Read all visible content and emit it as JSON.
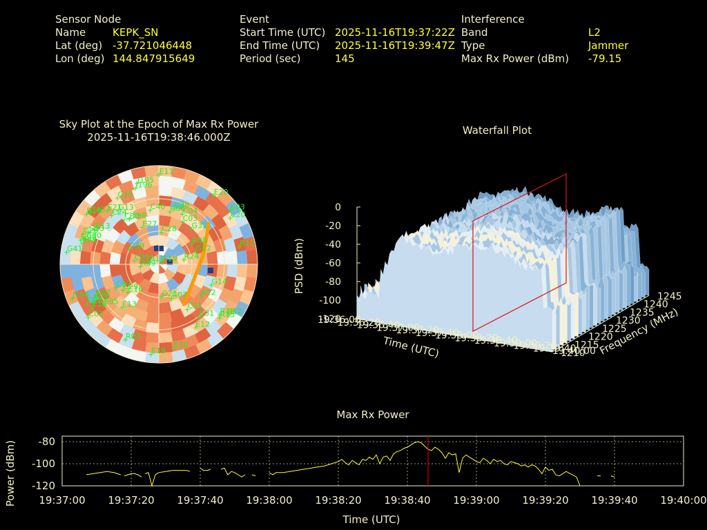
{
  "header": {
    "sensor": {
      "title": "Sensor Node",
      "name_label": "Name",
      "name": "KEPK_SN",
      "lat_label": "Lat (deg)",
      "lat": "-37.721046448",
      "lon_label": "Lon (deg)",
      "lon": "144.847915649"
    },
    "event": {
      "title": "Event",
      "start_label": "Start Time (UTC)",
      "start": "2025-11-16T19:37:22Z",
      "end_label": "End Time (UTC)",
      "end": "2025-11-16T19:39:47Z",
      "period_label": "Period (sec)",
      "period": "145"
    },
    "interference": {
      "title": "Interference",
      "band_label": "Band",
      "band": "L2",
      "type_label": "Type",
      "type": "Jammer",
      "power_label": "Max Rx Power (dBm)",
      "power": "-79.15"
    }
  },
  "colors": {
    "text": "#f3f0c8",
    "value": "#ffff33",
    "satellite": "#22ee22",
    "track": "#ff9900",
    "marker": "#cc0000"
  },
  "chart_data": [
    {
      "type": "scatter",
      "title": "Sky Plot at the Epoch of Max Rx Power",
      "subtitle": "2025-11-16T19:38:46.000Z",
      "projection": "polar (azimuth / elevation)",
      "satellites": [
        {
          "id": "E11",
          "az": 2,
          "el": 8
        },
        {
          "id": "J196",
          "az": 345,
          "el": 18
        },
        {
          "id": "J195",
          "az": 347,
          "el": 14
        },
        {
          "id": "E20",
          "az": 40,
          "el": 8
        },
        {
          "id": "G15",
          "az": 330,
          "el": 20
        },
        {
          "id": "E21",
          "az": 318,
          "el": 24
        },
        {
          "id": "G13",
          "az": 325,
          "el": 30
        },
        {
          "id": "E03",
          "az": 54,
          "el": 6
        },
        {
          "id": "C20",
          "az": 58,
          "el": 10
        },
        {
          "id": "C04",
          "az": 28,
          "el": 38
        },
        {
          "id": "C08",
          "az": 15,
          "el": 40
        },
        {
          "id": "C40",
          "az": 354,
          "el": 40
        },
        {
          "id": "J198",
          "az": 330,
          "el": 42
        },
        {
          "id": "C38",
          "az": 18,
          "el": 36
        },
        {
          "id": "C03",
          "az": 32,
          "el": 44
        },
        {
          "id": "R10",
          "az": 306,
          "el": 12
        },
        {
          "id": "C43",
          "az": 308,
          "el": 14
        },
        {
          "id": "C24",
          "az": 318,
          "el": 30
        },
        {
          "id": "C30",
          "az": 325,
          "el": 40
        },
        {
          "id": "E27",
          "az": 340,
          "el": 54
        },
        {
          "id": "C28",
          "az": 10,
          "el": 60
        },
        {
          "id": "G23",
          "az": 296,
          "el": 22
        },
        {
          "id": "C26",
          "az": 293,
          "el": 18
        },
        {
          "id": "R13",
          "az": 300,
          "el": 26
        },
        {
          "id": "G08",
          "az": 288,
          "el": 18
        },
        {
          "id": "G30",
          "az": 290,
          "el": 22
        },
        {
          "id": "E08",
          "az": 286,
          "el": 20
        },
        {
          "id": "G41",
          "az": 278,
          "el": 8
        },
        {
          "id": "G32",
          "az": 45,
          "el": 44
        },
        {
          "id": "R11",
          "az": 78,
          "el": 12
        },
        {
          "id": "R08",
          "az": 60,
          "el": 52
        },
        {
          "id": "R24",
          "az": 80,
          "el": 64
        },
        {
          "id": "G22",
          "az": 72,
          "el": 52
        },
        {
          "id": "C39",
          "az": 300,
          "el": 62
        },
        {
          "id": "C09",
          "az": 280,
          "el": 70
        },
        {
          "id": "R12",
          "az": 290,
          "el": 84
        },
        {
          "id": "C19",
          "az": 70,
          "el": 84
        },
        {
          "id": "G14",
          "az": 110,
          "el": 36
        },
        {
          "id": "C01",
          "az": 145,
          "el": 40
        },
        {
          "id": "G07",
          "az": 155,
          "el": 56
        },
        {
          "id": "G21",
          "az": 170,
          "el": 60
        },
        {
          "id": "R22",
          "az": 125,
          "el": 40
        },
        {
          "id": "R09",
          "az": 262,
          "el": 76
        },
        {
          "id": "E15",
          "az": 236,
          "el": 20
        },
        {
          "id": "R02",
          "az": 242,
          "el": 28
        },
        {
          "id": "C29",
          "az": 232,
          "el": 52
        },
        {
          "id": "C07",
          "az": 240,
          "el": 48
        },
        {
          "id": "C16",
          "az": 225,
          "el": 54
        },
        {
          "id": "R23",
          "az": 240,
          "el": 24
        },
        {
          "id": "E13",
          "az": 218,
          "el": 40
        },
        {
          "id": "C23",
          "az": 240,
          "el": 18
        },
        {
          "id": "E05",
          "az": 232,
          "el": 30
        },
        {
          "id": "J194",
          "az": 248,
          "el": 8
        },
        {
          "id": "C02",
          "az": 232,
          "el": 12
        },
        {
          "id": "R03",
          "az": 202,
          "el": 16
        },
        {
          "id": "E19",
          "az": 183,
          "el": 8
        },
        {
          "id": "E10",
          "az": 168,
          "el": 12
        },
        {
          "id": "E12",
          "az": 148,
          "el": 22
        },
        {
          "id": "E31",
          "az": 140,
          "el": 28
        },
        {
          "id": "R15",
          "az": 130,
          "el": 14
        },
        {
          "id": "R18",
          "az": 128,
          "el": 16
        },
        {
          "id": "E12b",
          "az": 125,
          "el": 10
        }
      ]
    },
    {
      "type": "area",
      "title": "Waterfall Plot",
      "xlabel": "Time (UTC)",
      "ylabel": "Frequency (MHz)",
      "zlabel": "PSD (dBm)",
      "x_ticks": [
        "19:36:00",
        "19:36:20",
        "19:36:40",
        "19:37:00",
        "19:37:20",
        "19:37:40",
        "19:38:00",
        "19:38:20",
        "19:38:40",
        "19:39:00",
        "19:39:20",
        "19:39:40",
        "19:40:00"
      ],
      "y_ticks": [
        "1210",
        "1215",
        "1220",
        "1225",
        "1230",
        "1235",
        "1240",
        "1245"
      ],
      "z_ticks": [
        "0",
        "-20",
        "-40",
        "-60",
        "-80",
        "-100",
        "-120"
      ],
      "zlim": [
        -120,
        0
      ],
      "ylim": [
        1210,
        1245
      ]
    },
    {
      "type": "line",
      "title": "Max Rx Power",
      "xlabel": "Time (UTC)",
      "ylabel": "Power (dBm)",
      "x_ticks": [
        "19:37:00",
        "19:37:20",
        "19:37:40",
        "19:38:00",
        "19:38:20",
        "19:38:40",
        "19:39:00",
        "19:39:20",
        "19:39:40",
        "19:40:00"
      ],
      "y_ticks": [
        "-80",
        "-100",
        "-120"
      ],
      "xlim_sec": [
        0,
        180
      ],
      "ylim": [
        -120,
        -75
      ],
      "grid": true,
      "marker_time": "19:38:46",
      "series": [
        {
          "values": [
            [
              7,
              -110
            ],
            [
              9,
              -109
            ],
            [
              11,
              -108
            ],
            [
              13,
              -107
            ],
            [
              15,
              -108
            ],
            [
              17,
              -110
            ],
            null,
            [
              18,
              -111
            ],
            [
              19,
              -110
            ],
            [
              20,
              -109
            ],
            [
              21,
              -109
            ],
            [
              22,
              -110
            ],
            [
              23,
              -112
            ],
            null,
            [
              24,
              -109
            ],
            [
              25,
              -108
            ],
            [
              26,
              -120
            ],
            [
              27,
              -110
            ],
            [
              28,
              -108
            ],
            [
              30,
              -107
            ],
            [
              32,
              -106
            ],
            [
              34,
              -106
            ],
            [
              36,
              -106
            ],
            [
              37,
              -107
            ],
            null,
            [
              40,
              -104
            ],
            [
              41,
              -106
            ],
            [
              42,
              -106
            ],
            [
              43,
              -105
            ],
            null,
            [
              46,
              -105
            ],
            [
              47,
              -104
            ],
            [
              48,
              -110
            ],
            [
              49,
              -107
            ],
            [
              50,
              -108
            ],
            [
              51,
              -110
            ],
            [
              52,
              -112
            ],
            [
              53,
              -110
            ],
            null,
            [
              55,
              -110
            ],
            [
              56,
              -111
            ],
            null,
            [
              60,
              -108
            ],
            [
              61,
              -110
            ],
            [
              62,
              -108
            ],
            [
              64,
              -108
            ],
            [
              66,
              -107
            ],
            [
              68,
              -106
            ],
            [
              70,
              -105
            ],
            [
              72,
              -104
            ],
            [
              74,
              -103
            ],
            [
              76,
              -102
            ],
            [
              78,
              -100
            ],
            [
              80,
              -98
            ],
            [
              81,
              -96
            ],
            [
              82,
              -99
            ],
            [
              83,
              -101
            ],
            [
              84,
              -97
            ],
            [
              85,
              -99
            ],
            [
              86,
              -101
            ],
            [
              87,
              -96
            ],
            [
              88,
              -97
            ],
            [
              89,
              -94
            ],
            [
              90,
              -96
            ],
            [
              91,
              -92
            ],
            [
              92,
              -100
            ],
            [
              93,
              -94
            ],
            [
              94,
              -93
            ],
            [
              95,
              -97
            ],
            [
              96,
              -91
            ],
            [
              97,
              -89
            ],
            [
              98,
              -88
            ],
            [
              99,
              -86
            ],
            [
              100,
              -85
            ],
            [
              101,
              -83
            ],
            [
              102,
              -81
            ],
            [
              103,
              -80
            ],
            [
              104,
              -81
            ],
            [
              105,
              -84
            ],
            [
              106,
              -87
            ],
            [
              107,
              -88
            ],
            [
              108,
              -85
            ],
            [
              109,
              -87
            ],
            [
              110,
              -90
            ],
            [
              111,
              -95
            ],
            [
              112,
              -90
            ],
            [
              113,
              -92
            ],
            [
              114,
              -91
            ],
            [
              115,
              -108
            ],
            [
              116,
              -95
            ],
            [
              117,
              -92
            ],
            [
              118,
              -94
            ],
            [
              119,
              -96
            ],
            [
              120,
              -98
            ],
            [
              121,
              -99
            ],
            [
              122,
              -95
            ],
            [
              123,
              -97
            ],
            [
              124,
              -100
            ],
            [
              125,
              -96
            ],
            [
              126,
              -98
            ],
            [
              127,
              -97
            ],
            [
              128,
              -100
            ],
            [
              129,
              -101
            ],
            [
              130,
              -98
            ],
            [
              131,
              -99
            ],
            [
              132,
              -100
            ],
            [
              133,
              -102
            ],
            [
              134,
              -101
            ],
            [
              135,
              -103
            ],
            [
              136,
              -101
            ],
            [
              137,
              -102
            ],
            [
              138,
              -105
            ],
            [
              139,
              -109
            ],
            [
              140,
              -103
            ],
            [
              141,
              -106
            ],
            [
              142,
              -105
            ],
            [
              143,
              -110
            ],
            [
              144,
              -111
            ],
            [
              145,
              -109
            ],
            [
              146,
              -107
            ],
            [
              149,
              -112
            ],
            [
              150,
              -120
            ],
            null,
            [
              155,
              -111
            ],
            [
              156,
              -111
            ],
            null,
            [
              159,
              -111
            ],
            [
              160,
              -112
            ]
          ]
        }
      ]
    }
  ]
}
